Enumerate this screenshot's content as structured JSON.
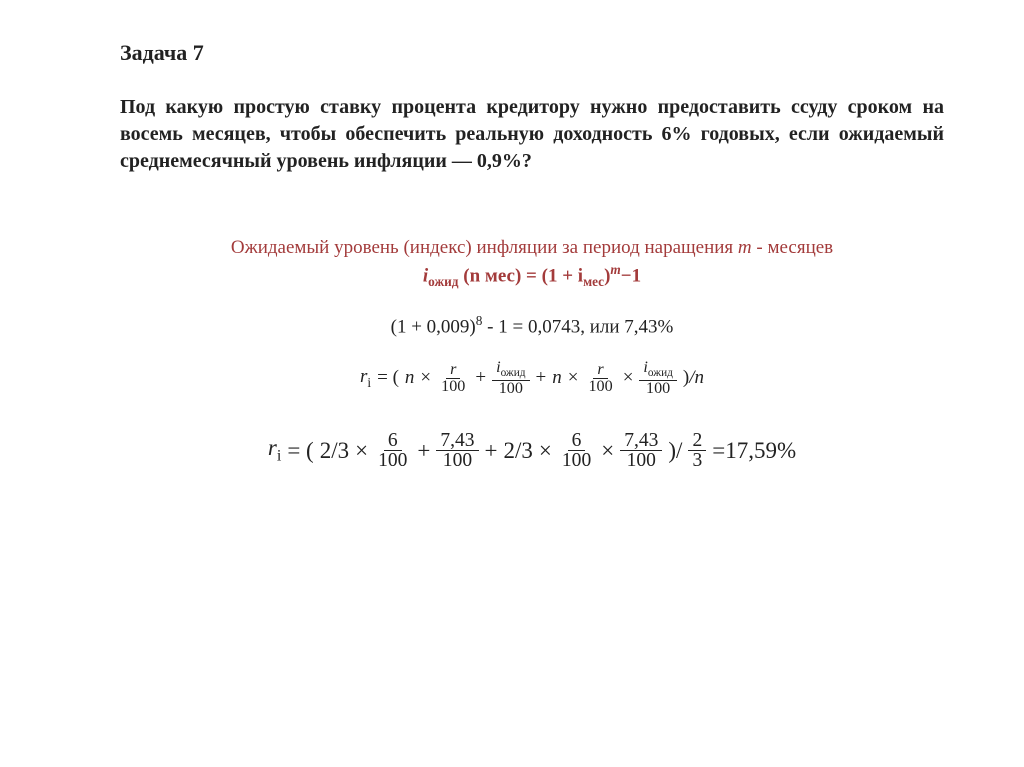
{
  "title": "Задача 7",
  "problem_text": "Под какую простую ставку процента кредитору нужно предоставить ссуду сроком на восемь месяцев, чтобы обеспечить реальную доходность 6% годовых, если ожидаемый среднемесячный уровень инфляции — 0,9%?",
  "hint_line1": "Ожидаемый уровень (индекс) инфляции за период наращения ",
  "hint_line1_tail": " - месяцев",
  "hint_var_m": "m",
  "hint_formula_left": "i",
  "hint_formula_sub1": "ожид",
  "hint_formula_args": "(n мес) = (1 + i",
  "hint_formula_sub2": "мес",
  "hint_formula_right": ")",
  "hint_formula_exp": "m",
  "hint_formula_tail": "−1",
  "calc_line": "(1 + 0,009)",
  "calc_exp": "8",
  "calc_tail": " - 1 = 0,0743, или 7,43%",
  "f": {
    "r_i": "r",
    "r_i_sub": "i",
    "n": "n",
    "r": "r",
    "hundred": "100",
    "iozh": "i",
    "iozh_sub": "ожид",
    "div_n": "/n"
  },
  "big": {
    "two_thirds": "2/3",
    "six": "6",
    "hundred": "100",
    "seven43": "7,43",
    "eq": " =",
    "result": "17,59%",
    "frac2": "2",
    "frac3": "3"
  },
  "colors": {
    "text": "#222222",
    "emphasis": "#a33b3b",
    "background": "#ffffff"
  },
  "fonts": {
    "family": "Times New Roman",
    "title_size_pt": 17,
    "body_size_pt": 15,
    "formula_big_size_pt": 18
  }
}
